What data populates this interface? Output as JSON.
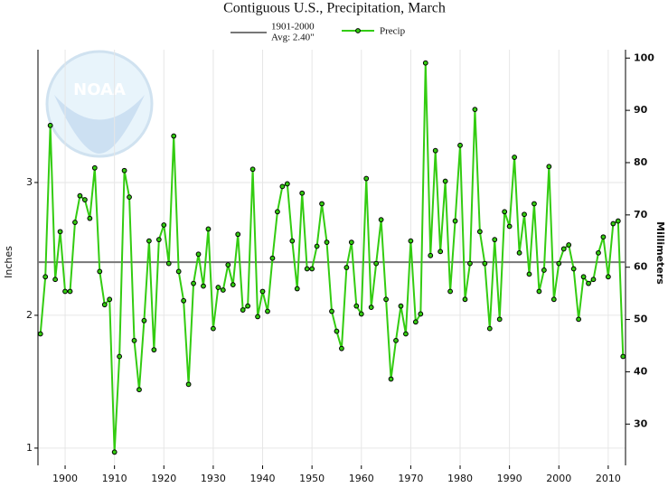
{
  "chart_data": {
    "type": "line",
    "title": "Contiguous U.S., Precipitation, March",
    "y_label": "Inches",
    "y2_label": "Millimeters",
    "logo_text": "NOAA",
    "x": [
      1895,
      1896,
      1897,
      1898,
      1899,
      1900,
      1901,
      1902,
      1903,
      1904,
      1905,
      1906,
      1907,
      1908,
      1909,
      1910,
      1911,
      1912,
      1913,
      1914,
      1915,
      1916,
      1917,
      1918,
      1919,
      1920,
      1921,
      1922,
      1923,
      1924,
      1925,
      1926,
      1927,
      1928,
      1929,
      1930,
      1931,
      1932,
      1933,
      1934,
      1935,
      1936,
      1937,
      1938,
      1939,
      1940,
      1941,
      1942,
      1943,
      1944,
      1945,
      1946,
      1947,
      1948,
      1949,
      1950,
      1951,
      1952,
      1953,
      1954,
      1955,
      1956,
      1957,
      1958,
      1959,
      1960,
      1961,
      1962,
      1963,
      1964,
      1965,
      1966,
      1967,
      1968,
      1969,
      1970,
      1971,
      1972,
      1973,
      1974,
      1975,
      1976,
      1977,
      1978,
      1979,
      1980,
      1981,
      1982,
      1983,
      1984,
      1985,
      1986,
      1987,
      1988,
      1989,
      1990,
      1991,
      1992,
      1993,
      1994,
      1995,
      1996,
      1997,
      1998,
      1999,
      2000,
      2001,
      2002,
      2003,
      2004,
      2005,
      2006,
      2007,
      2008,
      2009,
      2010,
      2011,
      2012,
      2013
    ],
    "series": [
      {
        "name": "Precip",
        "color": "#33cc11",
        "values": [
          1.86,
          2.29,
          3.43,
          2.27,
          2.63,
          2.18,
          2.18,
          2.7,
          2.9,
          2.87,
          2.73,
          3.11,
          2.33,
          2.08,
          2.12,
          0.97,
          1.69,
          3.09,
          2.89,
          1.81,
          1.44,
          1.96,
          2.56,
          1.74,
          2.57,
          2.68,
          2.39,
          3.35,
          2.33,
          2.11,
          1.48,
          2.24,
          2.46,
          2.22,
          2.65,
          1.9,
          2.21,
          2.19,
          2.38,
          2.23,
          2.61,
          2.04,
          2.07,
          3.1,
          1.99,
          2.18,
          2.03,
          2.43,
          2.78,
          2.97,
          2.99,
          2.56,
          2.2,
          2.92,
          2.35,
          2.35,
          2.52,
          2.84,
          2.55,
          2.03,
          1.88,
          1.75,
          2.36,
          2.55,
          2.07,
          2.01,
          3.03,
          2.06,
          2.39,
          2.72,
          2.12,
          1.52,
          1.81,
          2.07,
          1.86,
          2.56,
          1.95,
          2.01,
          3.9,
          2.45,
          3.24,
          2.48,
          3.01,
          2.18,
          2.71,
          3.28,
          2.12,
          2.39,
          3.55,
          2.63,
          2.39,
          1.9,
          2.57,
          1.97,
          2.78,
          2.67,
          3.19,
          2.47,
          2.76,
          2.31,
          2.84,
          2.18,
          2.34,
          3.12,
          2.12,
          2.39,
          2.5,
          2.53,
          2.35,
          1.97,
          2.29,
          2.24,
          2.27,
          2.47,
          2.59,
          2.29,
          2.69,
          2.71,
          1.69
        ]
      }
    ],
    "average": {
      "label_lines": [
        "1901-2000",
        "Avg: 2.40\""
      ],
      "value": 2.4,
      "color": "#777777"
    },
    "xlim": [
      1894.5,
      2013.5
    ],
    "xticks": [
      1900,
      1910,
      1920,
      1930,
      1940,
      1950,
      1960,
      1970,
      1980,
      1990,
      2000,
      2010
    ],
    "ylim": [
      0.87,
      4.0
    ],
    "yticks": [
      1,
      2,
      3
    ],
    "y2lim": [
      22.1,
      101.6
    ],
    "y2ticks": [
      30,
      40,
      50,
      60,
      70,
      80,
      90,
      100
    ],
    "grid": true
  }
}
